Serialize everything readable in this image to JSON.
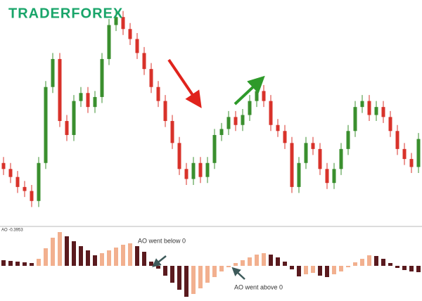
{
  "logo": "TRADERFOREX",
  "chart_data": [
    {
      "type": "candlestick",
      "open": [
        24,
        21,
        17,
        12,
        10,
        5,
        24,
        62,
        76,
        45,
        38,
        55,
        59,
        52,
        57,
        76,
        93,
        97,
        91,
        86,
        79,
        71,
        62,
        55,
        45,
        34,
        21,
        16,
        24,
        17,
        24,
        38,
        41,
        47,
        43,
        48,
        55,
        60,
        55,
        43,
        40,
        34,
        12,
        24,
        34,
        31,
        21,
        14,
        21,
        31,
        40,
        52,
        55,
        48,
        52,
        47,
        40,
        31,
        26,
        22
      ],
      "high": [
        27,
        24,
        20,
        15,
        13,
        27,
        65,
        79,
        79,
        48,
        58,
        62,
        62,
        60,
        79,
        96,
        100,
        100,
        94,
        89,
        82,
        74,
        65,
        58,
        48,
        37,
        24,
        27,
        27,
        27,
        41,
        44,
        50,
        50,
        51,
        58,
        63,
        63,
        58,
        46,
        43,
        37,
        27,
        37,
        37,
        34,
        24,
        24,
        34,
        43,
        55,
        58,
        58,
        55,
        55,
        50,
        43,
        34,
        29,
        39
      ],
      "low": [
        18,
        14,
        9,
        7,
        2,
        2,
        21,
        59,
        42,
        35,
        35,
        52,
        49,
        49,
        54,
        73,
        90,
        88,
        83,
        76,
        68,
        59,
        52,
        42,
        31,
        18,
        13,
        13,
        14,
        14,
        21,
        35,
        38,
        40,
        40,
        45,
        52,
        52,
        40,
        37,
        31,
        9,
        9,
        21,
        28,
        18,
        11,
        11,
        18,
        28,
        37,
        49,
        45,
        45,
        44,
        37,
        28,
        23,
        19,
        19
      ],
      "close": [
        21,
        17,
        12,
        10,
        5,
        24,
        62,
        76,
        45,
        38,
        55,
        59,
        52,
        57,
        76,
        93,
        97,
        91,
        86,
        79,
        71,
        62,
        55,
        45,
        34,
        21,
        16,
        24,
        17,
        24,
        38,
        41,
        47,
        43,
        48,
        55,
        60,
        55,
        43,
        40,
        34,
        12,
        24,
        34,
        31,
        21,
        14,
        21,
        31,
        40,
        52,
        55,
        48,
        52,
        47,
        40,
        31,
        26,
        22,
        36
      ],
      "up_color": "#3a8f2e",
      "down_color": "#d8322a",
      "ylim": [
        0,
        102
      ]
    },
    {
      "type": "bar",
      "title": "AO -0.3953",
      "values": [
        8,
        7,
        6,
        5,
        4,
        10,
        25,
        40,
        48,
        42,
        35,
        28,
        22,
        15,
        18,
        22,
        26,
        30,
        32,
        28,
        20,
        6,
        -4,
        -14,
        -24,
        -34,
        -44,
        -40,
        -32,
        -24,
        -16,
        -8,
        -2,
        4,
        8,
        12,
        16,
        18,
        16,
        12,
        6,
        -5,
        -15,
        -12,
        -10,
        -14,
        -16,
        -12,
        -8,
        -2,
        5,
        10,
        15,
        14,
        10,
        4,
        -3,
        -6,
        -8,
        -9
      ],
      "up_color": "#f2b08f",
      "down_color": "#5a1a1e",
      "ylim": [
        -50,
        55
      ],
      "annotations": [
        "AO went below 0",
        "AO went above 0"
      ]
    }
  ]
}
